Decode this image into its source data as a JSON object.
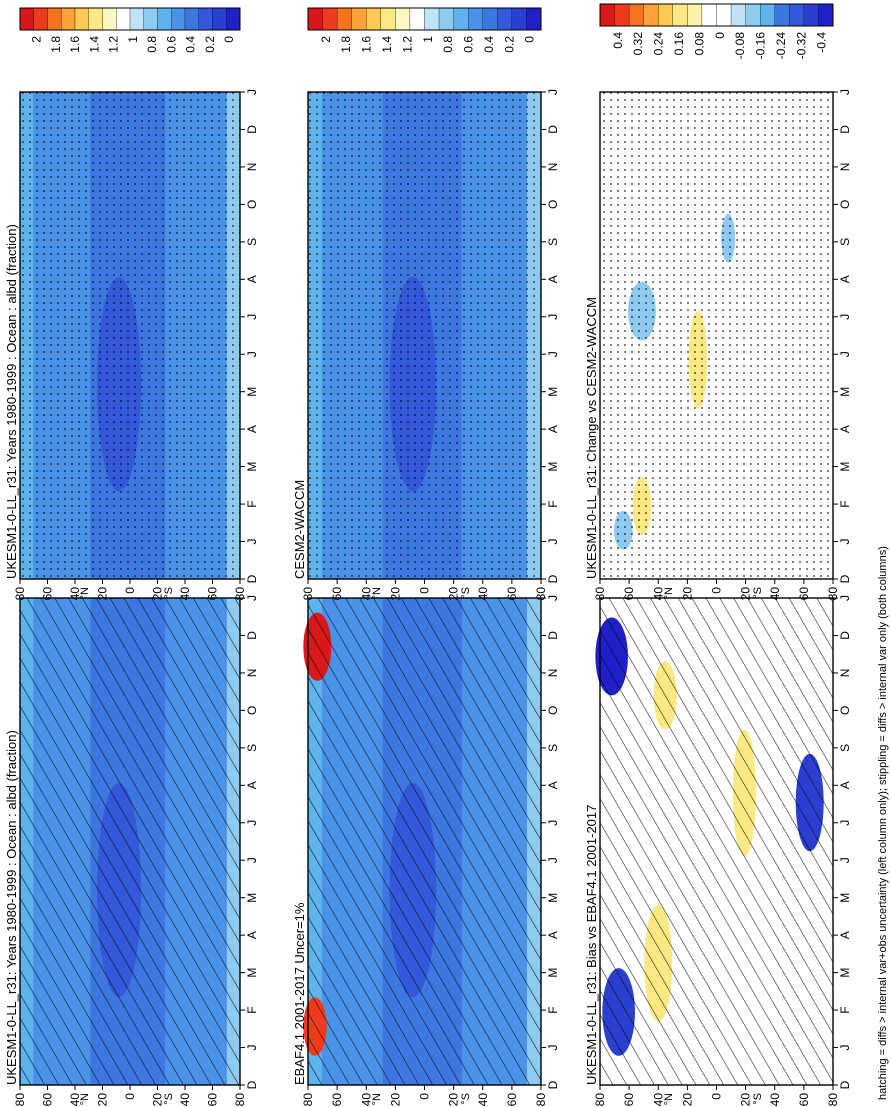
{
  "footer": "hatching = diffs > internal var+obs uncertainty (left column only); stippling = diffs > internal var only (both columns)",
  "chart_data": [
    {
      "type": "heatmap",
      "panel": "model-left",
      "title": "UKESM1-0-LL_r31: Years 1980-1999 : Ocean : albd (fraction)",
      "x_ticks": [
        "D",
        "J",
        "F",
        "M",
        "A",
        "M",
        "J",
        "J",
        "A",
        "S",
        "O",
        "N",
        "D",
        "J"
      ],
      "y_ticks": [
        "80",
        "60",
        "40",
        "20",
        "0",
        "20",
        "40",
        "60",
        "80"
      ],
      "y_unit_n": "°N",
      "y_unit_s": "°S",
      "colorbar": [
        "2",
        "1.8",
        "1.6",
        "1.4",
        "1.2",
        "1",
        "0.8",
        "0.6",
        "0.4",
        "0.2",
        "0"
      ],
      "pattern": "hatch",
      "background": "#4a93e8"
    },
    {
      "type": "heatmap",
      "panel": "model-right",
      "title": "UKESM1-0-LL_r31: Years 1980-1999 : Ocean : albd (fraction)",
      "x_ticks": [
        "D",
        "J",
        "F",
        "M",
        "A",
        "M",
        "J",
        "J",
        "A",
        "S",
        "O",
        "N",
        "D",
        "J"
      ],
      "y_ticks": [
        "80",
        "60",
        "40",
        "20",
        "0",
        "20",
        "40",
        "60",
        "80"
      ],
      "y_unit_n": "°N",
      "y_unit_s": "°S",
      "colorbar": [
        "2",
        "1.8",
        "1.6",
        "1.4",
        "1.2",
        "1",
        "0.8",
        "0.6",
        "0.4",
        "0.2",
        "0"
      ],
      "pattern": "stipple",
      "background": "#4a93e8"
    },
    {
      "type": "heatmap",
      "panel": "obs",
      "title": "EBAF4.1 2001-2017 Uncer=1%",
      "x_ticks": [
        "D",
        "J",
        "F",
        "M",
        "A",
        "M",
        "J",
        "J",
        "A",
        "S",
        "O",
        "N",
        "D",
        "J"
      ],
      "y_ticks": [
        "80",
        "60",
        "40",
        "20",
        "0",
        "20",
        "40",
        "60",
        "80"
      ],
      "y_unit_n": "°N",
      "y_unit_s": "°S",
      "colorbar": [
        "2",
        "1.8",
        "1.6",
        "1.4",
        "1.2",
        "1",
        "0.8",
        "0.6",
        "0.4",
        "0.2",
        "0"
      ],
      "pattern": "hatch",
      "background": "#4a93e8"
    },
    {
      "type": "heatmap",
      "panel": "ref-model",
      "title": "CESM2-WACCM",
      "x_ticks": [
        "D",
        "J",
        "F",
        "M",
        "A",
        "M",
        "J",
        "J",
        "A",
        "S",
        "O",
        "N",
        "D",
        "J"
      ],
      "y_ticks": [
        "80",
        "60",
        "40",
        "20",
        "0",
        "20",
        "40",
        "60",
        "80"
      ],
      "y_unit_n": "°N",
      "y_unit_s": "°S",
      "colorbar": [
        "2",
        "1.8",
        "1.6",
        "1.4",
        "1.2",
        "1",
        "0.8",
        "0.6",
        "0.4",
        "0.2",
        "0"
      ],
      "pattern": "stipple",
      "background": "#4a93e8"
    },
    {
      "type": "heatmap",
      "panel": "bias",
      "title": "UKESM1-0-LL_r31: Bias vs EBAF4.1 2001-2017",
      "x_ticks": [
        "D",
        "J",
        "F",
        "M",
        "A",
        "M",
        "J",
        "J",
        "A",
        "S",
        "O",
        "N",
        "D",
        "J"
      ],
      "y_ticks": [
        "80",
        "60",
        "40",
        "20",
        "0",
        "20",
        "40",
        "60",
        "80"
      ],
      "y_unit_n": "°N",
      "y_unit_s": "°S",
      "colorbar": [
        "0.4",
        "0.32",
        "0.24",
        "0.16",
        "0.08",
        "0",
        "-0.08",
        "-0.16",
        "-0.24",
        "-0.32",
        "-0.4"
      ],
      "pattern": "hatch",
      "background": "#ffffff"
    },
    {
      "type": "heatmap",
      "panel": "change",
      "title": "UKESM1-0-LL_r31: Change vs CESM2-WACCM",
      "x_ticks": [
        "D",
        "J",
        "F",
        "M",
        "A",
        "M",
        "J",
        "J",
        "A",
        "S",
        "O",
        "N",
        "D",
        "J"
      ],
      "y_ticks": [
        "80",
        "60",
        "40",
        "20",
        "0",
        "20",
        "40",
        "60",
        "80"
      ],
      "y_unit_n": "°N",
      "y_unit_s": "°S",
      "colorbar": [
        "0.4",
        "0.32",
        "0.24",
        "0.16",
        "0.08",
        "0",
        "-0.08",
        "-0.16",
        "-0.24",
        "-0.32",
        "-0.4"
      ],
      "pattern": "stipple",
      "background": "#ffffff"
    }
  ],
  "colors": {
    "abs_scale": [
      "#d7191c",
      "#ee3b1d",
      "#f7721e",
      "#fba23a",
      "#fdca54",
      "#fde983",
      "#fdf7c4",
      "#ffffff",
      "#bfe2f7",
      "#8fcaf0",
      "#5eb3ec",
      "#4a93e8",
      "#3d78e0",
      "#3358d9",
      "#2a3ecf",
      "#2020c8"
    ],
    "diff_scale": [
      "#d7191c",
      "#ee3b1d",
      "#f7721e",
      "#fba23a",
      "#fdca54",
      "#fde983",
      "#fdf3a8",
      "#ffffff",
      "#ffffff",
      "#bfe2f7",
      "#8fcaf0",
      "#5eb3ec",
      "#3d78e0",
      "#3358d9",
      "#2a3ecf",
      "#2020c8"
    ]
  }
}
